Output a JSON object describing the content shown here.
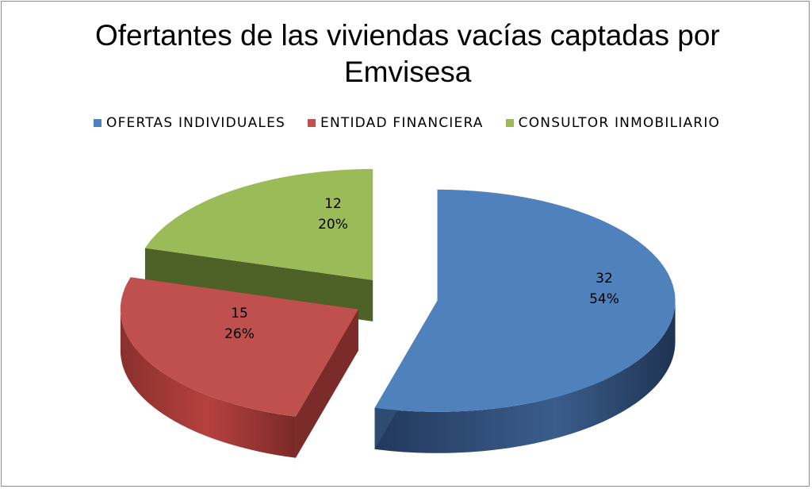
{
  "chart_data": {
    "type": "pie",
    "style": "3d-exploded",
    "title_line1": "Ofertantes de las viviendas vacías captadas por",
    "title_line2": "Emvisesa",
    "legend_position": "top",
    "slices": [
      {
        "name": "OFERTAS INDIVIDUALES",
        "value": 32,
        "percent": "54%",
        "value_label": "32",
        "color": "#4f81bd",
        "side_color": "#2e4b72"
      },
      {
        "name": "ENTIDAD FINANCIERA",
        "value": 15,
        "percent": "26%",
        "value_label": "15",
        "color": "#c0504d",
        "side_color": "#7b2c2a"
      },
      {
        "name": "CONSULTOR INMOBILIARIO",
        "value": 12,
        "percent": "20%",
        "value_label": "12",
        "color": "#9bbb59",
        "side_color": "#4e6127"
      }
    ]
  }
}
